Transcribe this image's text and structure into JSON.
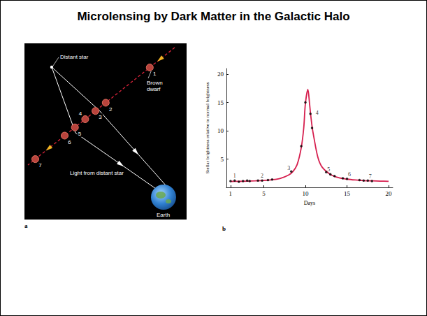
{
  "title": "Microlensing by Dark Matter in the Galactic Halo",
  "diagram": {
    "panel_label": "a",
    "star_label": "Distant star",
    "lens_label": "Brown dwarf",
    "lens_positions": [
      "1",
      "2",
      "3",
      "4",
      "5",
      "6",
      "7"
    ],
    "light_label": "Light from distant star",
    "observer_label": "Earth"
  },
  "chart_data": {
    "type": "line",
    "panel_label": "b",
    "xlabel": "Days",
    "ylabel": "Stellar brightness relative to normal brightness",
    "xlim": [
      0.5,
      20.5
    ],
    "xticks": [
      1,
      5,
      10,
      15,
      20
    ],
    "ylim": [
      0,
      21
    ],
    "yticks": [
      5,
      10,
      15,
      20
    ],
    "grid": false,
    "series": [
      {
        "type": "line",
        "color": "#d6204f",
        "line_style": "solid",
        "x": [
          1,
          2,
          3,
          4,
          5,
          6,
          7,
          8,
          8.5,
          9,
          9.5,
          9.8,
          10,
          10.3,
          10.5,
          10.6,
          10.8,
          11,
          11.5,
          12,
          13,
          14,
          15,
          16,
          17,
          18,
          19,
          20
        ],
        "values": [
          1.05,
          1.07,
          1.1,
          1.15,
          1.22,
          1.35,
          1.6,
          2.2,
          2.8,
          4.0,
          7.0,
          10.5,
          14.8,
          17.3,
          14.8,
          13.3,
          10.8,
          9.0,
          5.3,
          3.6,
          2.3,
          1.7,
          1.45,
          1.3,
          1.2,
          1.15,
          1.1,
          1.07
        ]
      },
      {
        "type": "scatter",
        "color": "#000000",
        "marker": "circle",
        "x": [
          1,
          1.5,
          2,
          2.5,
          3,
          3.3,
          4.3,
          4.8,
          5.5,
          6,
          8.3,
          9.5,
          10,
          10.6,
          10.8,
          12.5,
          13,
          13.5,
          14.5,
          15,
          16.5,
          17,
          17.5,
          18
        ],
        "values": [
          1.1,
          1.2,
          1.0,
          1.1,
          1.2,
          1.1,
          1.2,
          1.2,
          1.3,
          1.4,
          2.8,
          7.3,
          15,
          13,
          10.5,
          2.7,
          2.3,
          2.0,
          1.6,
          1.5,
          1.3,
          1.2,
          1.2,
          1.1
        ]
      }
    ],
    "annotations": [
      {
        "x": 1.5,
        "y": 2.0,
        "text": "1"
      },
      {
        "x": 4.8,
        "y": 2.1,
        "text": "2"
      },
      {
        "x": 8.0,
        "y": 3.4,
        "text": "3"
      },
      {
        "x": 11.4,
        "y": 13.2,
        "text": "4"
      },
      {
        "x": 12.8,
        "y": 3.2,
        "text": "5"
      },
      {
        "x": 15.3,
        "y": 2.3,
        "text": "6"
      },
      {
        "x": 17.8,
        "y": 1.9,
        "text": "7"
      }
    ]
  }
}
